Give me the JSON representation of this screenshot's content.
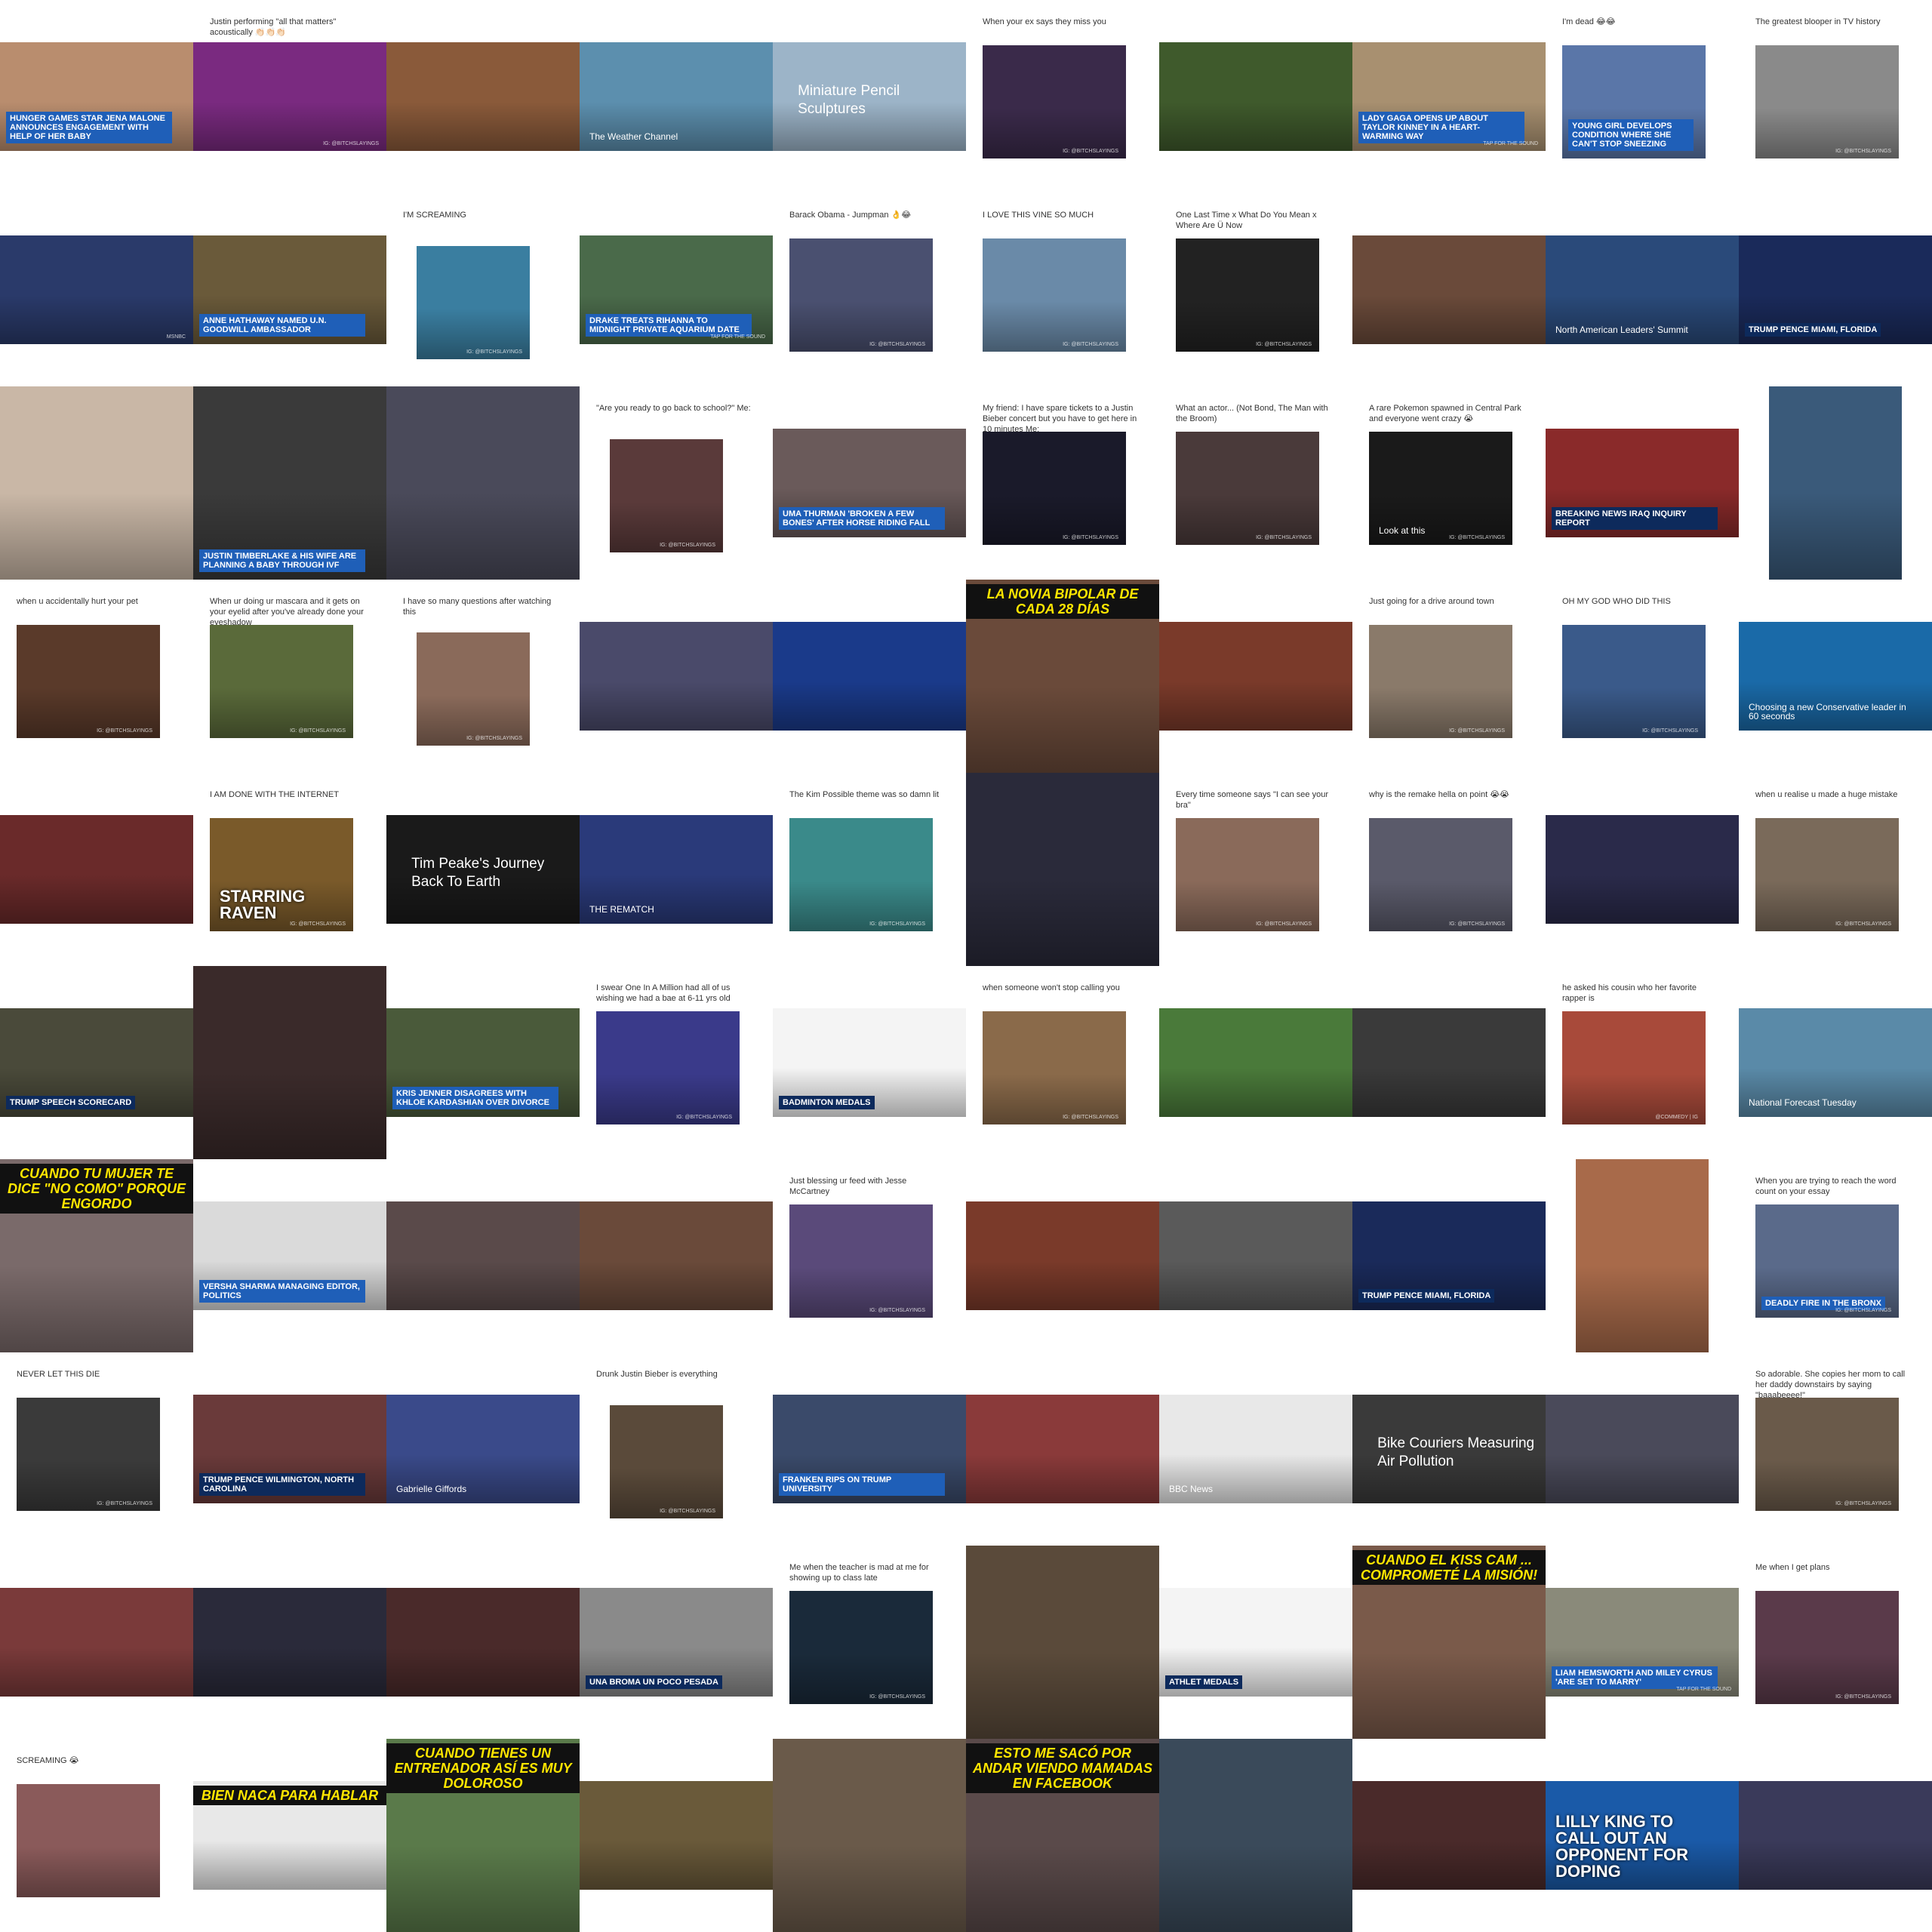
{
  "grid": {
    "columns": 10,
    "rows": 10
  },
  "tiles": [
    {
      "caption": "",
      "overlay": "Hunger Games star Jena Malone announces engagement with help of her baby",
      "style": "blue",
      "watermark": "",
      "frame": "wide",
      "color": "#b98d6e"
    },
    {
      "caption": "Justin performing \"all that matters\" acoustically 👏🏻👏🏻👏🏻",
      "overlay": "",
      "style": "",
      "watermark": "IG: @BITCHSLAYINGS",
      "frame": "wide",
      "color": "#7a2a80"
    },
    {
      "caption": "",
      "overlay": "",
      "style": "",
      "watermark": "",
      "frame": "wide",
      "color": "#8a5a3a"
    },
    {
      "caption": "",
      "overlay": "The Weather Channel",
      "style": "plain",
      "watermark": "",
      "frame": "wide",
      "color": "#5c8fae"
    },
    {
      "caption": "",
      "overlay": "Miniature Pencil Sculptures",
      "style": "sky",
      "watermark": "",
      "frame": "wide",
      "color": "#9cb4c8"
    },
    {
      "caption": "When your ex says they miss you",
      "overlay": "",
      "style": "",
      "watermark": "IG: @BITCHSLAYINGS",
      "frame": "med",
      "color": "#3a2a4a"
    },
    {
      "caption": "",
      "overlay": "",
      "style": "",
      "watermark": "",
      "frame": "wide",
      "color": "#3f5a2c"
    },
    {
      "caption": "",
      "overlay": "Lady Gaga opens up about Taylor Kinney in a heart-warming way",
      "style": "blue",
      "watermark": "TAP FOR THE SOUND",
      "frame": "wide",
      "color": "#a89070"
    },
    {
      "caption": "I'm dead 😂😂",
      "overlay": "Young girl develops condition where she can't stop sneezing",
      "style": "blue",
      "watermark": "",
      "frame": "med",
      "color": "#5a76a8"
    },
    {
      "caption": "The greatest blooper in TV history",
      "overlay": "",
      "style": "",
      "watermark": "IG: @BITCHSLAYINGS",
      "frame": "med",
      "color": "#8a8a8a"
    },
    {
      "caption": "",
      "overlay": "",
      "style": "",
      "watermark": "MSNBC",
      "frame": "wide",
      "color": "#2a3a6a"
    },
    {
      "caption": "",
      "overlay": "Anne Hathaway named U.N. Goodwill Ambassador",
      "style": "blue",
      "watermark": "",
      "frame": "wide",
      "color": "#6a5a3a"
    },
    {
      "caption": "I'M SCREAMING",
      "overlay": "",
      "style": "",
      "watermark": "IG: @BITCHSLAYINGS",
      "frame": "sm",
      "color": "#3a7ea0"
    },
    {
      "caption": "",
      "overlay": "Drake treats Rihanna to midnight private aquarium date",
      "style": "blue",
      "watermark": "TAP FOR THE SOUND",
      "frame": "wide",
      "color": "#4a6a4a"
    },
    {
      "caption": "Barack Obama - Jumpman 👌😂",
      "overlay": "",
      "style": "",
      "watermark": "IG: @BITCHSLAYINGS",
      "frame": "med",
      "color": "#4a5070"
    },
    {
      "caption": "I LOVE THIS VINE SO MUCH",
      "overlay": "",
      "style": "",
      "watermark": "IG: @BITCHSLAYINGS",
      "frame": "med",
      "color": "#6a8aa8"
    },
    {
      "caption": "One Last Time x What Do You Mean x Where Are Ü Now",
      "overlay": "",
      "style": "",
      "watermark": "IG: @BITCHSLAYINGS",
      "frame": "med",
      "color": "#222222"
    },
    {
      "caption": "",
      "overlay": "",
      "style": "",
      "watermark": "",
      "frame": "wide",
      "color": "#6a4a3a"
    },
    {
      "caption": "",
      "overlay": "North American Leaders' Summit",
      "style": "plain",
      "watermark": "",
      "frame": "wide",
      "color": "#2a4a7a"
    },
    {
      "caption": "",
      "overlay": "TRUMP PENCE Miami, Florida",
      "style": "dark",
      "watermark": "",
      "frame": "wide",
      "color": "#1a2a5a"
    },
    {
      "caption": "",
      "overlay": "",
      "style": "",
      "watermark": "",
      "frame": "full",
      "color": "#c9b7a6"
    },
    {
      "caption": "",
      "overlay": "Justin Timberlake & his wife are planning a baby through IVF",
      "style": "blue",
      "watermark": "",
      "frame": "full",
      "color": "#3a3a3a"
    },
    {
      "caption": "",
      "overlay": "",
      "style": "",
      "watermark": "",
      "frame": "full",
      "color": "#4a4a5a"
    },
    {
      "caption": "\"Are you ready to go back to school?\" Me:",
      "overlay": "",
      "style": "",
      "watermark": "IG: @BITCHSLAYINGS",
      "frame": "sm",
      "color": "#5a3a3a"
    },
    {
      "caption": "",
      "overlay": "Uma Thurman 'broken a few bones' after horse riding fall",
      "style": "blue",
      "watermark": "",
      "frame": "wide",
      "color": "#6a5a5a"
    },
    {
      "caption": "My friend: I have spare tickets to a Justin Bieber concert but you have to get here in 10 minutes Me:",
      "overlay": "",
      "style": "",
      "watermark": "IG: @BITCHSLAYINGS",
      "frame": "med",
      "color": "#1a1a2a"
    },
    {
      "caption": "What an actor... (Not Bond, The Man with the Broom)",
      "overlay": "",
      "style": "",
      "watermark": "IG: @BITCHSLAYINGS",
      "frame": "med",
      "color": "#4a3a3a"
    },
    {
      "caption": "A rare Pokemon spawned in Central Park and everyone went crazy 😭",
      "overlay": "Look at this",
      "style": "plain",
      "watermark": "IG: @BITCHSLAYINGS",
      "frame": "med",
      "color": "#1a1a1a"
    },
    {
      "caption": "",
      "overlay": "Breaking News Iraq Inquiry Report",
      "style": "dark",
      "watermark": "",
      "frame": "wide",
      "color": "#8a2a2a"
    },
    {
      "caption": "",
      "overlay": "",
      "style": "",
      "watermark": "",
      "frame": "tall",
      "color": "#3a5a7a"
    },
    {
      "caption": "when u accidentally hurt your pet",
      "overlay": "",
      "style": "",
      "watermark": "IG: @BITCHSLAYINGS",
      "frame": "med",
      "color": "#5a3a2a"
    },
    {
      "caption": "When ur doing ur mascara and it gets on your eyelid after you've already done your eyeshadow",
      "overlay": "",
      "style": "",
      "watermark": "IG: @BITCHSLAYINGS",
      "frame": "med",
      "color": "#5a6a3a"
    },
    {
      "caption": "I have so many questions after watching this",
      "overlay": "",
      "style": "",
      "watermark": "IG: @BITCHSLAYINGS",
      "frame": "sm",
      "color": "#8a6a5a"
    },
    {
      "caption": "",
      "overlay": "",
      "style": "",
      "watermark": "",
      "frame": "wide",
      "color": "#4a4a6a"
    },
    {
      "caption": "",
      "overlay": "",
      "style": "",
      "watermark": "",
      "frame": "wide",
      "color": "#1a3a8a"
    },
    {
      "caption": "",
      "overlay": "La novia bipolar de cada 28 días",
      "style": "banner",
      "watermark": "",
      "frame": "full",
      "color": "#6a4a3a"
    },
    {
      "caption": "",
      "overlay": "",
      "style": "",
      "watermark": "",
      "frame": "wide",
      "color": "#7a3a2a"
    },
    {
      "caption": "Just going for a drive around town",
      "overlay": "",
      "style": "",
      "watermark": "IG: @BITCHSLAYINGS",
      "frame": "med",
      "color": "#8a7a6a"
    },
    {
      "caption": "OH MY GOD WHO DID THIS",
      "overlay": "",
      "style": "",
      "watermark": "IG: @BITCHSLAYINGS",
      "frame": "med",
      "color": "#3a5a8a"
    },
    {
      "caption": "",
      "overlay": "Choosing a new Conservative leader in 60 seconds",
      "style": "plain",
      "watermark": "",
      "frame": "wide",
      "color": "#1a6aa8"
    },
    {
      "caption": "",
      "overlay": "",
      "style": "",
      "watermark": "",
      "frame": "wide",
      "color": "#6a2a2a"
    },
    {
      "caption": "I AM DONE WITH THE INTERNET",
      "overlay": "starring raven",
      "style": "big",
      "watermark": "IG: @BITCHSLAYINGS",
      "frame": "med",
      "color": "#7a5a2a"
    },
    {
      "caption": "",
      "overlay": "Tim Peake's Journey Back To Earth",
      "style": "sky",
      "watermark": "",
      "frame": "wide",
      "color": "#1a1a1a"
    },
    {
      "caption": "",
      "overlay": "THE REMATCH",
      "style": "plain",
      "watermark": "",
      "frame": "wide",
      "color": "#2a3a7a"
    },
    {
      "caption": "The Kim Possible theme was so damn lit",
      "overlay": "",
      "style": "",
      "watermark": "IG: @BITCHSLAYINGS",
      "frame": "med",
      "color": "#3a8a8a"
    },
    {
      "caption": "",
      "overlay": "",
      "style": "",
      "watermark": "",
      "frame": "full",
      "color": "#2a2a3a"
    },
    {
      "caption": "Every time someone says \"I can see your bra\"",
      "overlay": "",
      "style": "",
      "watermark": "IG: @BITCHSLAYINGS",
      "frame": "med",
      "color": "#8a6a5a"
    },
    {
      "caption": "why is the remake hella on point 😭😭",
      "overlay": "",
      "style": "",
      "watermark": "IG: @BITCHSLAYINGS",
      "frame": "med",
      "color": "#5a5a6a"
    },
    {
      "caption": "",
      "overlay": "",
      "style": "",
      "watermark": "",
      "frame": "wide",
      "color": "#2a2a4a"
    },
    {
      "caption": "when u realise u made a huge mistake",
      "overlay": "",
      "style": "",
      "watermark": "IG: @BITCHSLAYINGS",
      "frame": "med",
      "color": "#7a6a5a"
    },
    {
      "caption": "",
      "overlay": "Trump speech scorecard",
      "style": "dark",
      "watermark": "",
      "frame": "wide",
      "color": "#4a4a3a"
    },
    {
      "caption": "",
      "overlay": "",
      "style": "",
      "watermark": "",
      "frame": "full",
      "color": "#3a2a2a"
    },
    {
      "caption": "",
      "overlay": "Kris Jenner disagrees with Khloe Kardashian over divorce",
      "style": "blue",
      "watermark": "",
      "frame": "wide",
      "color": "#4a5a3a"
    },
    {
      "caption": "I swear One In A Million had all of us wishing we had a bae at 6-11 yrs old",
      "overlay": "",
      "style": "",
      "watermark": "IG: @BITCHSLAYINGS",
      "frame": "med",
      "color": "#3a3a8a"
    },
    {
      "caption": "",
      "overlay": "Badminton Medals",
      "style": "dark",
      "watermark": "",
      "frame": "wide",
      "color": "#f4f4f4"
    },
    {
      "caption": "when someone won't stop calling you",
      "overlay": "",
      "style": "",
      "watermark": "IG: @BITCHSLAYINGS",
      "frame": "med",
      "color": "#8a6a4a"
    },
    {
      "caption": "",
      "overlay": "",
      "style": "",
      "watermark": "",
      "frame": "wide",
      "color": "#4a7a3a"
    },
    {
      "caption": "",
      "overlay": "",
      "style": "",
      "watermark": "",
      "frame": "wide",
      "color": "#3a3a3a"
    },
    {
      "caption": "he asked his cousin who her favorite rapper is",
      "overlay": "",
      "style": "",
      "watermark": "@COMMEDY | IG",
      "frame": "med",
      "color": "#a84a3a"
    },
    {
      "caption": "",
      "overlay": "National Forecast Tuesday",
      "style": "plain",
      "watermark": "",
      "frame": "wide",
      "color": "#5a8aa8"
    },
    {
      "caption": "",
      "overlay": "Cuando tu mujer te dice \"no como\" porque engordo",
      "style": "banner",
      "watermark": "",
      "frame": "full",
      "color": "#7a6a6a"
    },
    {
      "caption": "",
      "overlay": "Versha Sharma Managing Editor, Politics",
      "style": "blue",
      "watermark": "",
      "frame": "wide",
      "color": "#dadada"
    },
    {
      "caption": "",
      "overlay": "",
      "style": "",
      "watermark": "",
      "frame": "wide",
      "color": "#5a4a4a"
    },
    {
      "caption": "",
      "overlay": "",
      "style": "",
      "watermark": "",
      "frame": "wide",
      "color": "#6a4a3a"
    },
    {
      "caption": "Just blessing ur feed with Jesse McCartney",
      "overlay": "",
      "style": "",
      "watermark": "IG: @BITCHSLAYINGS",
      "frame": "med",
      "color": "#5a4a7a"
    },
    {
      "caption": "",
      "overlay": "",
      "style": "",
      "watermark": "",
      "frame": "wide",
      "color": "#7a3a2a"
    },
    {
      "caption": "",
      "overlay": "",
      "style": "",
      "watermark": "",
      "frame": "wide",
      "color": "#5a5a5a"
    },
    {
      "caption": "",
      "overlay": "TRUMP PENCE Miami, Florida",
      "style": "dark",
      "watermark": "",
      "frame": "wide",
      "color": "#1a2a5a"
    },
    {
      "caption": "",
      "overlay": "",
      "style": "",
      "watermark": "",
      "frame": "tall",
      "color": "#a86a4a"
    },
    {
      "caption": "When you are trying to reach the word count on your essay",
      "overlay": "Deadly fire in the Bronx",
      "style": "blue",
      "watermark": "IG: @BITCHSLAYINGS",
      "frame": "med",
      "color": "#5a6a8a"
    },
    {
      "caption": "NEVER LET THIS DIE",
      "overlay": "",
      "style": "",
      "watermark": "IG: @BITCHSLAYINGS",
      "frame": "med",
      "color": "#3a3a3a"
    },
    {
      "caption": "",
      "overlay": "TRUMP PENCE Wilmington, North Carolina",
      "style": "dark",
      "watermark": "",
      "frame": "wide",
      "color": "#6a3a3a"
    },
    {
      "caption": "",
      "overlay": "Gabrielle Giffords",
      "style": "plain",
      "watermark": "",
      "frame": "wide",
      "color": "#3a4a8a"
    },
    {
      "caption": "Drunk Justin Bieber is everything",
      "overlay": "",
      "style": "",
      "watermark": "IG: @BITCHSLAYINGS",
      "frame": "sm",
      "color": "#5a4a3a"
    },
    {
      "caption": "",
      "overlay": "Franken rips on Trump University",
      "style": "blue",
      "watermark": "",
      "frame": "wide",
      "color": "#3a4a6a"
    },
    {
      "caption": "",
      "overlay": "",
      "style": "",
      "watermark": "",
      "frame": "wide",
      "color": "#8a3a3a"
    },
    {
      "caption": "",
      "overlay": "BBC News",
      "style": "plain",
      "watermark": "",
      "frame": "wide",
      "color": "#e8e8e8"
    },
    {
      "caption": "",
      "overlay": "Bike Couriers Measuring Air Pollution",
      "style": "sky",
      "watermark": "",
      "frame": "wide",
      "color": "#3a3a3a"
    },
    {
      "caption": "",
      "overlay": "",
      "style": "",
      "watermark": "",
      "frame": "wide",
      "color": "#4a4a5a"
    },
    {
      "caption": "So adorable. She copies her mom to call her daddy downstairs by saying \"baaabeeee!\"",
      "overlay": "",
      "style": "",
      "watermark": "IG: @BITCHSLAYINGS",
      "frame": "med",
      "color": "#6a5a4a"
    },
    {
      "caption": "",
      "overlay": "",
      "style": "",
      "watermark": "",
      "frame": "wide",
      "color": "#7a3a3a"
    },
    {
      "caption": "",
      "overlay": "",
      "style": "",
      "watermark": "",
      "frame": "wide",
      "color": "#2a2a3a"
    },
    {
      "caption": "",
      "overlay": "",
      "style": "",
      "watermark": "",
      "frame": "wide",
      "color": "#4a2a2a"
    },
    {
      "caption": "",
      "overlay": "Una broma un poco pesada",
      "style": "dark",
      "watermark": "",
      "frame": "wide",
      "color": "#8a8a8a"
    },
    {
      "caption": "Me when the teacher is mad at me for showing up to class late",
      "overlay": "",
      "style": "",
      "watermark": "IG: @BITCHSLAYINGS",
      "frame": "med",
      "color": "#1a2a3a"
    },
    {
      "caption": "",
      "overlay": "",
      "style": "",
      "watermark": "",
      "frame": "full",
      "color": "#5a4a3a"
    },
    {
      "caption": "",
      "overlay": "Athlet Medals",
      "style": "dark",
      "watermark": "",
      "frame": "wide",
      "color": "#f4f4f4"
    },
    {
      "caption": "",
      "overlay": "Cuando el kiss cam ... comprometé la misión!",
      "style": "banner",
      "watermark": "",
      "frame": "full",
      "color": "#7a5a4a"
    },
    {
      "caption": "",
      "overlay": "Liam Hemsworth and Miley Cyrus 'are set to marry'",
      "style": "blue",
      "watermark": "TAP FOR THE SOUND",
      "frame": "wide",
      "color": "#8a8a7a"
    },
    {
      "caption": "Me when I get plans",
      "overlay": "",
      "style": "",
      "watermark": "IG: @BITCHSLAYINGS",
      "frame": "med",
      "color": "#5a3a4a"
    },
    {
      "caption": "SCREAMING 😭",
      "overlay": "",
      "style": "",
      "watermark": "",
      "frame": "med",
      "color": "#8a5a5a"
    },
    {
      "caption": "",
      "overlay": "Bien naca para hablar",
      "style": "banner",
      "watermark": "",
      "frame": "wide",
      "color": "#e8e8e8"
    },
    {
      "caption": "",
      "overlay": "Cuando tienes un entrenador así es muy doloroso",
      "style": "banner",
      "watermark": "",
      "frame": "full",
      "color": "#5a7a4a"
    },
    {
      "caption": "",
      "overlay": "",
      "style": "",
      "watermark": "",
      "frame": "wide",
      "color": "#6a5a3a"
    },
    {
      "caption": "",
      "overlay": "",
      "style": "",
      "watermark": "",
      "frame": "full",
      "color": "#6a5a4a"
    },
    {
      "caption": "",
      "overlay": "Esto me sacó por andar viendo mamadas en Facebook",
      "style": "banner",
      "watermark": "",
      "frame": "full",
      "color": "#5a4a4a"
    },
    {
      "caption": "",
      "overlay": "",
      "style": "",
      "watermark": "",
      "frame": "full",
      "color": "#3a4a5a"
    },
    {
      "caption": "",
      "overlay": "",
      "style": "",
      "watermark": "",
      "frame": "wide",
      "color": "#4a2a2a"
    },
    {
      "caption": "",
      "overlay": "Lilly King to call out an opponent for doping",
      "style": "big",
      "watermark": "",
      "frame": "wide",
      "color": "#1a5aa8"
    },
    {
      "caption": "",
      "overlay": "",
      "style": "",
      "watermark": "",
      "frame": "wide",
      "color": "#3a3a5a"
    }
  ]
}
